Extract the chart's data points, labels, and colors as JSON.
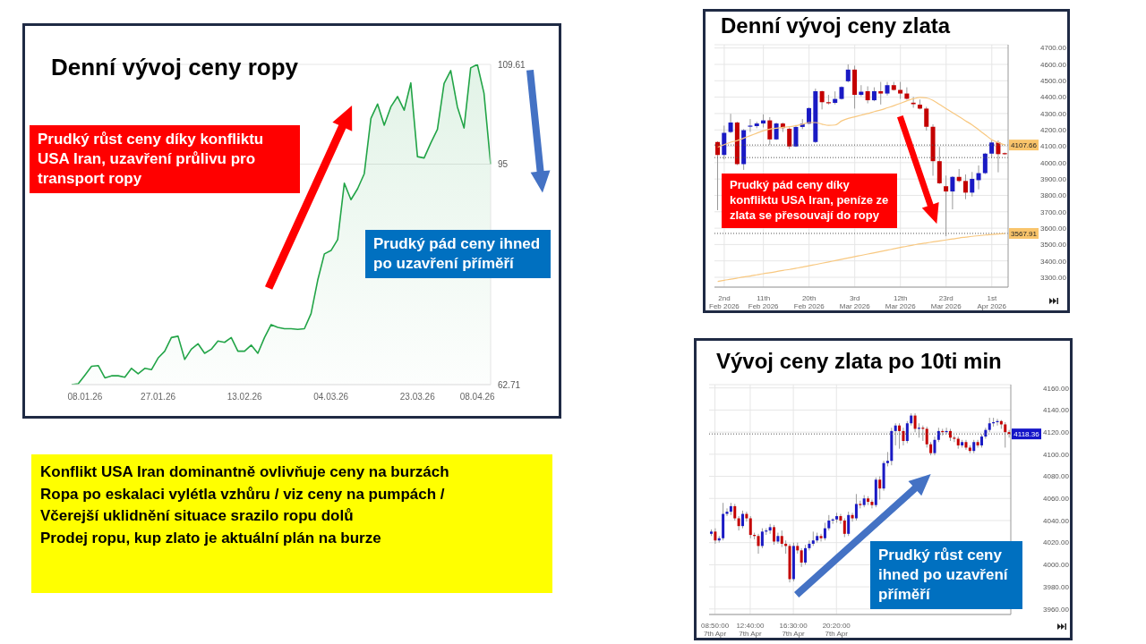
{
  "chart_data": [
    {
      "type": "area",
      "title": "Denní vývoj ceny ropy",
      "color": "#22a447",
      "categories": [
        null,
        null,
        "08.01.26",
        null,
        null,
        null,
        null,
        null,
        null,
        null,
        null,
        null,
        null,
        "27.01.26",
        null,
        null,
        null,
        null,
        null,
        null,
        null,
        null,
        null,
        null,
        null,
        null,
        "13.02.26",
        null,
        null,
        null,
        null,
        null,
        null,
        null,
        null,
        null,
        null,
        null,
        null,
        "04.03.26",
        null,
        null,
        null,
        null,
        null,
        null,
        null,
        null,
        null,
        null,
        null,
        null,
        "23.03.26",
        null,
        null,
        null,
        null,
        null,
        null,
        null,
        null,
        "08.04.26",
        null,
        null
      ],
      "values": [
        62.71,
        62.85,
        64.1,
        65.4,
        65.5,
        63.7,
        64.0,
        64.0,
        63.8,
        65.1,
        64.3,
        65.1,
        64.9,
        66.6,
        67.6,
        69.6,
        69.8,
        66.4,
        67.9,
        68.7,
        67.3,
        67.9,
        69.1,
        68.9,
        69.6,
        67.6,
        67.6,
        68.5,
        67.3,
        69.6,
        71.5,
        71.1,
        70.9,
        70.9,
        70.8,
        70.9,
        73.1,
        78.0,
        81.85,
        82.35,
        83.95,
        92.2,
        89.8,
        91.4,
        93.6,
        101.7,
        103.8,
        100.7,
        103.4,
        104.9,
        102.9,
        106.9,
        96.1,
        95.9,
        98.1,
        100.1,
        106.8,
        108.7,
        103.4,
        100.3,
        109.1,
        109.61,
        105.4,
        95
      ],
      "ylim": [
        62.71,
        109.61
      ],
      "yticks": [
        62.71,
        95,
        109.61
      ],
      "grid": "y",
      "annotations": [
        "Prudký růst ceny díky konfliktu USA Iran, uzavření průlivu pro transport ropy",
        "Prudký pád ceny ihned po uzavření příměří"
      ]
    },
    {
      "type": "candlestick",
      "title": "Denní vývoj ceny zlata",
      "categories": [
        null,
        "2nd Feb 2026",
        null,
        null,
        null,
        null,
        null,
        "11th Feb 2026",
        null,
        null,
        null,
        null,
        null,
        null,
        "20th Feb 2026",
        null,
        null,
        null,
        null,
        null,
        null,
        "3rd Mar 2026",
        null,
        null,
        null,
        null,
        null,
        null,
        "12th Mar 2026",
        null,
        null,
        null,
        null,
        null,
        null,
        "23rd Mar 2026",
        null,
        null,
        null,
        null,
        null,
        null,
        "1st Apr 2026",
        null,
        null
      ],
      "ohlc": [
        [
          4126,
          4130,
          3710,
          4047
        ],
        [
          4047,
          4226,
          4020,
          4182
        ],
        [
          4187,
          4298,
          4180,
          4245
        ],
        [
          4245,
          4250,
          3985,
          3991
        ],
        [
          3991,
          4205,
          3956,
          4198
        ],
        [
          4220,
          4266,
          4187,
          4226
        ],
        [
          4223,
          4250,
          4210,
          4239
        ],
        [
          4239,
          4295,
          4215,
          4258
        ],
        [
          4258,
          4278,
          4107,
          4142
        ],
        [
          4142,
          4245,
          4138,
          4239
        ],
        [
          4239,
          4245,
          4187,
          4211
        ],
        [
          4207,
          4215,
          4083,
          4099
        ],
        [
          4099,
          4230,
          4095,
          4218
        ],
        [
          4218,
          4266,
          4205,
          4238
        ],
        [
          4238,
          4338,
          4235,
          4333
        ],
        [
          4126,
          4452,
          4120,
          4436
        ],
        [
          4436,
          4440,
          4325,
          4369
        ],
        [
          4369,
          4414,
          4355,
          4365
        ],
        [
          4365,
          4435,
          4355,
          4389
        ],
        [
          4389,
          4466,
          4385,
          4462
        ],
        [
          4497,
          4600,
          4490,
          4568
        ],
        [
          4568,
          4592,
          4330,
          4414
        ],
        [
          4414,
          4473,
          4405,
          4433
        ],
        [
          4436,
          4466,
          4362,
          4381
        ],
        [
          4381,
          4460,
          4375,
          4436
        ],
        [
          4436,
          4493,
          4355,
          4422
        ],
        [
          4422,
          4493,
          4410,
          4473
        ],
        [
          4473,
          4493,
          4440,
          4444
        ],
        [
          4444,
          4493,
          4389,
          4422
        ],
        [
          4422,
          4460,
          4385,
          4390
        ],
        [
          4366,
          4401,
          4335,
          4357
        ],
        [
          4354,
          4385,
          4325,
          4330
        ],
        [
          4330,
          4341,
          4195,
          4219
        ],
        [
          4219,
          4234,
          3920,
          4009
        ],
        [
          4009,
          4096,
          3870,
          3874
        ],
        [
          3856,
          3921,
          3551,
          3824
        ],
        [
          3824,
          3918,
          3715,
          3913
        ],
        [
          3913,
          3961,
          3880,
          3888
        ],
        [
          3888,
          3928,
          3777,
          3817
        ],
        [
          3817,
          3943,
          3793,
          3901
        ],
        [
          3893,
          3983,
          3837,
          3936
        ],
        [
          3936,
          4060,
          3930,
          4055
        ],
        [
          4055,
          4136,
          4028,
          4123
        ],
        [
          4123,
          4136,
          3941,
          4052
        ],
        [
          4058,
          4062,
          4048,
          4052
        ]
      ],
      "series": [
        {
          "type": "line",
          "color": "#f8c880",
          "values": [
            4095,
            4110,
            4125,
            4135,
            4150,
            4165,
            4180,
            4195,
            4205,
            4210,
            4215,
            4220,
            4225,
            4235,
            4245,
            4245,
            4235,
            4228,
            4230,
            4255,
            4270,
            4280,
            4290,
            4300,
            4312,
            4322,
            4335,
            4348,
            4362,
            4378,
            4390,
            4398,
            4395,
            4380,
            4355,
            4330,
            4305,
            4280,
            4255,
            4230,
            4200,
            4170,
            4140,
            4122,
            4108
          ]
        },
        {
          "type": "line",
          "color": "#f8c880",
          "values": [
            3275,
            3282,
            3288,
            3295,
            3302,
            3308,
            3315,
            3322,
            3328,
            3335,
            3342,
            3348,
            3355,
            3362,
            3370,
            3378,
            3386,
            3394,
            3402,
            3410,
            3418,
            3426,
            3434,
            3442,
            3450,
            3458,
            3466,
            3474,
            3482,
            3490,
            3497,
            3504,
            3510,
            3516,
            3522,
            3528,
            3534,
            3540,
            3545,
            3550,
            3554,
            3558,
            3561,
            3564,
            3567
          ]
        }
      ],
      "ylim": [
        3240,
        4720
      ],
      "yticks": [
        {
          "value": 3300,
          "label": "3300.00"
        },
        {
          "value": 3400,
          "label": "3400.00"
        },
        {
          "value": 3500,
          "label": "3500.00"
        },
        {
          "value": 3600,
          "label": "3600.00"
        },
        {
          "value": 3700,
          "label": "3700.00"
        },
        {
          "value": 3800,
          "label": "3800.00"
        },
        {
          "value": 3900,
          "label": "3900.00"
        },
        {
          "value": 4000,
          "label": "4000.00"
        },
        {
          "value": 4100,
          "label": "4100.00"
        },
        {
          "value": 4200,
          "label": "4200.00"
        },
        {
          "value": 4300,
          "label": "4300.00"
        },
        {
          "value": 4400,
          "label": "4400.00"
        },
        {
          "value": 4500,
          "label": "4500.00"
        },
        {
          "value": 4600,
          "label": "4600.00"
        },
        {
          "value": 4700,
          "label": "4700.00"
        }
      ],
      "grid": true,
      "ref_lines": [
        {
          "axis": "y",
          "value": 4107.66,
          "label": "4107.66"
        },
        {
          "axis": "y",
          "value": 4031
        },
        {
          "axis": "y",
          "value": 3567.91,
          "label": "3567.91"
        }
      ],
      "annotations": [
        "Prudký pád ceny díky konfliktu USA Iran, peníze ze zlata se přesouvají do ropy"
      ]
    },
    {
      "type": "candlestick",
      "title": "Vývoj ceny zlata po 10ti min",
      "categories": [
        null,
        "08:50:00 7th Apr",
        null,
        null,
        null,
        null,
        null,
        null,
        null,
        null,
        "12:40:00 7th Apr",
        null,
        null,
        null,
        null,
        null,
        null,
        null,
        null,
        null,
        null,
        "16:30:00 7th Apr",
        null,
        null,
        null,
        null,
        null,
        null,
        null,
        null,
        null,
        null,
        "20:20:00 7th Apr",
        null,
        null,
        null,
        null,
        null,
        null,
        null,
        null,
        null,
        null,
        null,
        null,
        null,
        null,
        null,
        null,
        null,
        null,
        null,
        null,
        null,
        null,
        null,
        null,
        null,
        null,
        null,
        null,
        null,
        null,
        null,
        null,
        null,
        null,
        null,
        null,
        null,
        null,
        null,
        null,
        null,
        null,
        null,
        null
      ],
      "ohlc": [
        [
          4028,
          4032,
          4026,
          4030
        ],
        [
          4030,
          4033,
          4019,
          4022
        ],
        [
          4022,
          4026,
          4020,
          4024
        ],
        [
          4024,
          4056,
          4022,
          4046
        ],
        [
          4046,
          4051,
          4044,
          4048
        ],
        [
          4048,
          4056,
          4045,
          4053
        ],
        [
          4053,
          4055,
          4040,
          4042
        ],
        [
          4042,
          4044,
          4031,
          4035
        ],
        [
          4035,
          4049,
          4033,
          4046
        ],
        [
          4046,
          4048,
          4039,
          4042
        ],
        [
          4042,
          4044,
          4024,
          4027
        ],
        [
          4027,
          4029,
          4023,
          4026
        ],
        [
          4026,
          4028,
          4010,
          4017
        ],
        [
          4017,
          4033,
          4015,
          4030
        ],
        [
          4030,
          4033,
          4027,
          4031
        ],
        [
          4031,
          4037,
          4028,
          4034
        ],
        [
          4034,
          4036,
          4018,
          4021
        ],
        [
          4021,
          4029,
          4019,
          4026
        ],
        [
          4026,
          4031,
          4016,
          4019
        ],
        [
          4019,
          4022,
          4010,
          4017
        ],
        [
          4017,
          4019,
          3984,
          3987
        ],
        [
          3987,
          4020,
          3985,
          4017
        ],
        [
          4017,
          4020,
          4010,
          4013
        ],
        [
          4013,
          4015,
          3998,
          4002
        ],
        [
          4002,
          4018,
          4000,
          4015
        ],
        [
          4015,
          4022,
          4013,
          4019
        ],
        [
          4019,
          4030,
          4017,
          4022
        ],
        [
          4022,
          4029,
          4020,
          4026
        ],
        [
          4026,
          4028,
          4021,
          4024
        ],
        [
          4024,
          4038,
          4022,
          4033
        ],
        [
          4033,
          4045,
          4031,
          4040
        ],
        [
          4040,
          4042,
          4037,
          4041
        ],
        [
          4041,
          4047,
          4038,
          4044
        ],
        [
          4044,
          4046,
          4037,
          4040
        ],
        [
          4040,
          4042,
          4025,
          4028
        ],
        [
          4028,
          4048,
          4026,
          4045
        ],
        [
          4045,
          4047,
          4039,
          4042
        ],
        [
          4042,
          4064,
          4040,
          4055
        ],
        [
          4055,
          4058,
          4051,
          4054
        ],
        [
          4054,
          4063,
          4052,
          4060
        ],
        [
          4060,
          4062,
          4054,
          4057
        ],
        [
          4057,
          4059,
          4051,
          4054
        ],
        [
          4054,
          4079,
          4052,
          4077
        ],
        [
          4077,
          4080,
          4059,
          4069
        ],
        [
          4069,
          4094,
          4067,
          4092
        ],
        [
          4092,
          4102,
          4089,
          4094
        ],
        [
          4094,
          4124,
          4090,
          4121
        ],
        [
          4121,
          4128,
          4108,
          4126
        ],
        [
          4126,
          4128,
          4105,
          4121
        ],
        [
          4121,
          4124,
          4108,
          4112
        ],
        [
          4112,
          4130,
          4110,
          4128
        ],
        [
          4128,
          4137,
          4126,
          4135
        ],
        [
          4135,
          4137,
          4120,
          4123
        ],
        [
          4123,
          4128,
          4115,
          4124
        ],
        [
          4124,
          4126,
          4112,
          4123
        ],
        [
          4123,
          4125,
          4106,
          4109
        ],
        [
          4109,
          4111,
          4099,
          4101
        ],
        [
          4101,
          4116,
          4099,
          4113
        ],
        [
          4113,
          4124,
          4111,
          4121
        ],
        [
          4121,
          4123,
          4117,
          4120
        ],
        [
          4120,
          4124,
          4118,
          4121
        ],
        [
          4121,
          4123,
          4112,
          4115
        ],
        [
          4115,
          4117,
          4111,
          4114
        ],
        [
          4114,
          4116,
          4105,
          4108
        ],
        [
          4108,
          4113,
          4106,
          4111
        ],
        [
          4111,
          4113,
          4104,
          4106
        ],
        [
          4106,
          4108,
          4101,
          4103
        ],
        [
          4103,
          4113,
          4101,
          4111
        ],
        [
          4111,
          4113,
          4106,
          4108
        ],
        [
          4108,
          4118,
          4106,
          4116
        ],
        [
          4116,
          4124,
          4114,
          4122
        ],
        [
          4122,
          4133,
          4120,
          4128
        ],
        [
          4128,
          4133,
          4125,
          4129
        ],
        [
          4129,
          4132,
          4126,
          4130
        ],
        [
          4130,
          4131,
          4123,
          4127
        ],
        [
          4127,
          4129,
          4106,
          4120
        ],
        [
          4120,
          4122,
          4115,
          4118.36
        ]
      ],
      "ylim": [
        3955,
        4163
      ],
      "yticks": [
        {
          "value": 3960,
          "label": "3960.00"
        },
        {
          "value": 3980,
          "label": "3980.00"
        },
        {
          "value": 4000,
          "label": "4000.00"
        },
        {
          "value": 4020,
          "label": "4020.00"
        },
        {
          "value": 4040,
          "label": "4040.00"
        },
        {
          "value": 4060,
          "label": "4060.00"
        },
        {
          "value": 4080,
          "label": "4080.00"
        },
        {
          "value": 4100,
          "label": "4100.00"
        },
        {
          "value": 4120,
          "label": "4120.00"
        },
        {
          "value": 4140,
          "label": "4140.00"
        },
        {
          "value": 4160,
          "label": "4160.00"
        }
      ],
      "grid": true,
      "ref_lines": [
        {
          "axis": "y",
          "value": 4118.36,
          "label": "4118.36"
        }
      ],
      "annotations": [
        "Prudký růst ceny ihned po uzavření příměří"
      ]
    },
    {
      "type": "other",
      "annotations": [
        "Konflikt USA Iran dominantně ovlivňuje ceny na burzách",
        "Ropa po eskalaci vylétla vzhůru / viz ceny na pumpách /",
        "Včerejší uklidnění situace srazilo ropu dolů",
        "Prodej ropu, kup zlato je aktuální plán na burze"
      ]
    }
  ]
}
